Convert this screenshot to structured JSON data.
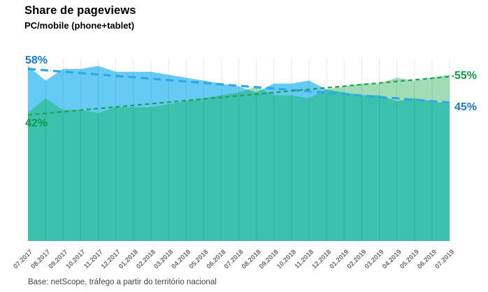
{
  "header": {
    "title": "Share de pageviews",
    "subtitle": "PC/mobile (phone+tablet)"
  },
  "chart_data": {
    "type": "area",
    "title": "Share de pageviews",
    "subtitle": "PC/mobile (phone+tablet)",
    "unit": "%",
    "ylim": [
      0,
      60
    ],
    "grid": "vertical-monthly",
    "gridline_color": "#E8E8E8",
    "tick_label_color": "#6E6E6E",
    "overlap_color": "#3BC1AE",
    "categories": [
      "07.2017",
      "08.2017",
      "09.2017",
      "10.2017",
      "11.2017",
      "12.2017",
      "01.2018",
      "02.2018",
      "03.2018",
      "04.2018",
      "05.2018",
      "06.2018",
      "07.2018",
      "08.2018",
      "09.2018",
      "10.2018",
      "11.2018",
      "12.2018",
      "01.2019",
      "02.2019",
      "03.2019",
      "04.2019",
      "05.2019",
      "06.2019",
      "07.2019"
    ],
    "series": [
      {
        "name": "PC",
        "values": [
          58,
          53,
          57,
          57,
          58,
          56,
          56,
          56,
          55,
          54,
          53,
          52,
          51,
          49,
          52,
          52,
          53,
          50,
          49,
          48,
          48,
          46,
          47,
          46,
          45
        ],
        "area_color": "#66CBF4",
        "trend": {
          "start": 57,
          "end": 45.4,
          "color": "#2FA8E5"
        },
        "start_label": "58%",
        "end_label": "45%",
        "label_color": "#1B76CE"
      },
      {
        "name": "mobile (phone+tablet)",
        "values": [
          42,
          47,
          43,
          43,
          42,
          44,
          44,
          44,
          45,
          46,
          47,
          48,
          49,
          51,
          48,
          48,
          47,
          50,
          51,
          52,
          52,
          54,
          53,
          54,
          55
        ],
        "area_color": "#A0DCB6",
        "trend": {
          "start": 41.3,
          "end": 54.5,
          "color": "#1FA050"
        },
        "start_label": "42%",
        "end_label": "55%",
        "label_color": "#0F9A48"
      }
    ]
  },
  "footer": {
    "source": "Base: netScope, tráfego a partir do território nacional"
  }
}
